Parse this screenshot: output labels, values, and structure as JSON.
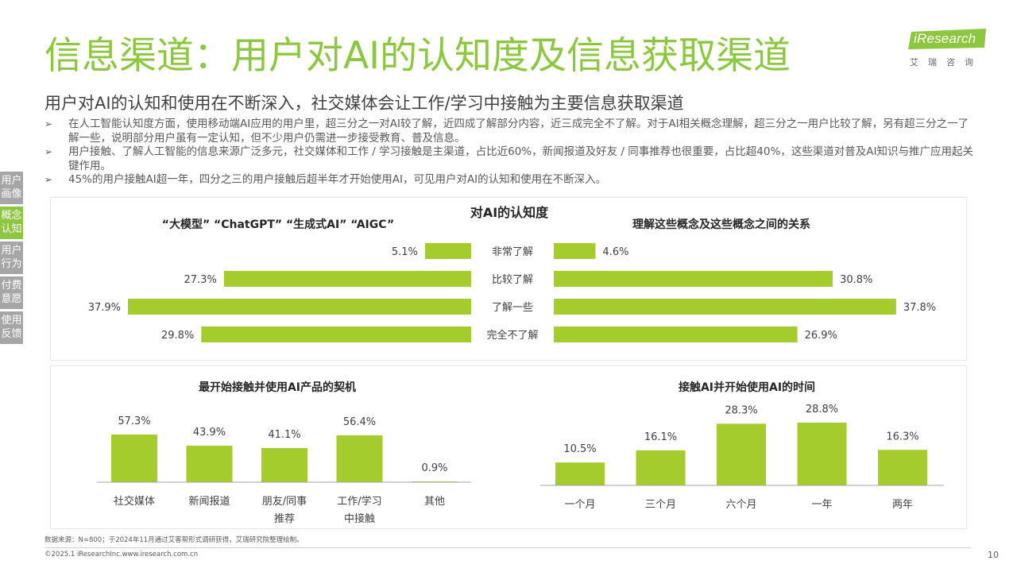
{
  "header": {
    "title": "信息渠道：用户对AI的认知度及信息获取渠道",
    "subtitle": "用户对AI的认知和使用在不断深入，社交媒体会让工作/学习中接触为主要信息获取渠道",
    "bullets": [
      "在人工智能认知度方面，使用移动端AI应用的用户里，超三分之一对AI较了解，近四成了解部分内容，近三成完全不了解。对于AI相关概念理解，超三分之一用户比较了解，另有超三分之一了解一些，说明部分用户虽有一定认知，但不少用户仍需进一步接受教育、普及信息。",
      "用户接触、了解人工智能的信息来源广泛多元，社交媒体和工作 / 学习接触是主渠道，占比近60%，新闻报道及好友 / 同事推荐也很重要，占比超40%，这些渠道对普及AI知识与推广应用起关键作用。",
      "45%的用户接触AI超一年，四分之三的用户接触后超半年才开始使用AI，可见用户对AI的认知和使用在不断深入。"
    ]
  },
  "logo": {
    "name": "iResearch",
    "sub": "艾瑞咨询",
    "color": "#8dc63f"
  },
  "side_nav": [
    {
      "label": "用户画像",
      "active": false
    },
    {
      "label": "概念认知",
      "active": true
    },
    {
      "label": "用户行为",
      "active": false
    },
    {
      "label": "付费意愿",
      "active": false
    },
    {
      "label": "使用反馈",
      "active": false
    }
  ],
  "colors": {
    "accent": "#8dc63f",
    "bar": "#a4cc2d",
    "nav_inactive": "#a6a6a6"
  },
  "chart_data": [
    {
      "type": "bar",
      "orientation": "horizontal-butterfly",
      "title": "对AI的认知度",
      "left_title": "“大模型” “ChatGPT” “生成式AI” “AIGC”",
      "right_title": "理解这些概念及这些概念之间的关系",
      "categories": [
        "非常了解",
        "比较了解",
        "了解一些",
        "完全不了解"
      ],
      "series": [
        {
          "values": [
            5.1,
            27.3,
            37.9,
            29.8
          ],
          "labels": [
            "5.1%",
            "27.3%",
            "37.9%",
            "29.8%"
          ]
        },
        {
          "values": [
            4.6,
            30.8,
            37.8,
            26.9
          ],
          "labels": [
            "4.6%",
            "30.8%",
            "37.8%",
            "26.9%"
          ]
        }
      ],
      "unit": "%"
    },
    {
      "type": "bar",
      "title": "最开始接触并使用AI产品的契机",
      "categories": [
        "社交媒体",
        "新闻报道",
        "朋友/同事\n推荐",
        "工作/学习\n中接触",
        "其他"
      ],
      "values": [
        57.3,
        43.9,
        41.1,
        56.4,
        0.9
      ],
      "labels": [
        "57.3%",
        "43.9%",
        "41.1%",
        "56.4%",
        "0.9%"
      ],
      "unit": "%"
    },
    {
      "type": "bar",
      "title": "接触AI并开始使用AI的时间",
      "categories": [
        "一个月",
        "三个月",
        "六个月",
        "一年",
        "两年"
      ],
      "values": [
        10.5,
        16.1,
        28.3,
        28.8,
        16.3
      ],
      "labels": [
        "10.5%",
        "16.1%",
        "28.3%",
        "28.8%",
        "16.3%"
      ],
      "unit": "%"
    }
  ],
  "footer": {
    "source": "数据来源：N=800；于2024年11月通过艾客帮形式调研获得，艾瑞研究院整理绘制。",
    "copyright": "©2025.1 iResearchInc.www.iresearch.com.cn",
    "page": "10"
  }
}
